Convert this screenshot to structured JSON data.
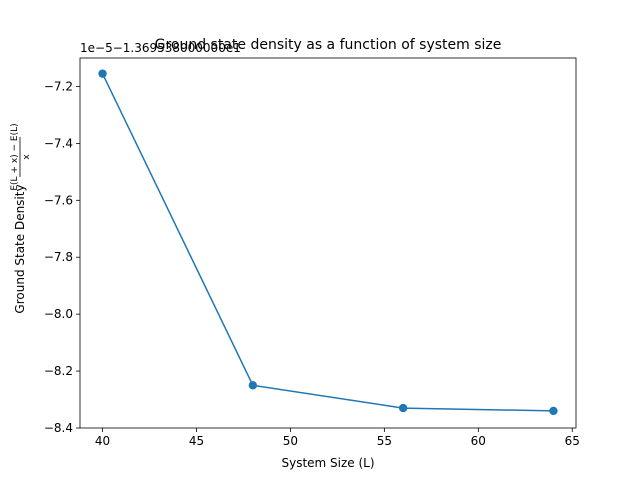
{
  "chart_data": {
    "type": "line",
    "title": "Ground state density as a function of system size",
    "xlabel": "System Size (L)",
    "ylabel": "Ground State Density",
    "ylabel_fraction": {
      "numerator": "E(L + x) − E(L)",
      "denominator": "x"
    },
    "offset_text": "1e−5−1.369538000000e1",
    "x": [
      40,
      48,
      56,
      64
    ],
    "series": [
      {
        "values": [
          -7.155,
          -8.25,
          -8.33,
          -8.34
        ],
        "color": "#1f77b4",
        "marker": "circle"
      }
    ],
    "xlim": [
      38.8,
      65.2
    ],
    "ylim": [
      -8.4,
      -7.1
    ],
    "xticks": [
      40,
      45,
      50,
      55,
      60,
      65
    ],
    "xtick_labels": [
      "40",
      "45",
      "50",
      "55",
      "60",
      "65"
    ],
    "yticks": [
      -7.2,
      -7.4,
      -7.6,
      -7.8,
      -8.0,
      -8.2,
      -8.4
    ],
    "ytick_labels": [
      "−7.2",
      "−7.4",
      "−7.6",
      "−7.8",
      "−8.0",
      "−8.2",
      "−8.4"
    ],
    "grid": false,
    "legend": false
  }
}
